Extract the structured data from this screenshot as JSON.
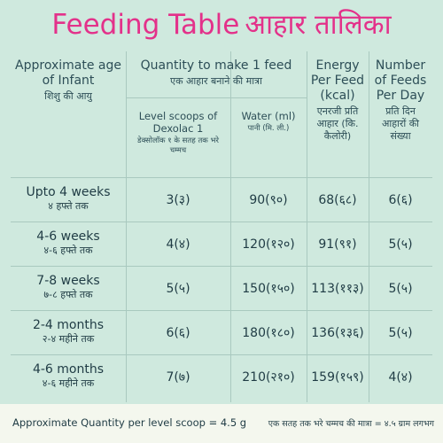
{
  "title": {
    "english": "Feeding Table",
    "hindi": "आहार तालिका"
  },
  "headers": {
    "age": {
      "english": "Approximate age of Infant",
      "hindi": "शिशु की आयु"
    },
    "quantity": {
      "english": "Quantity to make 1 feed",
      "hindi": "एक आहार बनाने की मात्रा"
    },
    "scoops": {
      "english": "Level scoops of Dexolac 1",
      "hindi": "डेक्सोलॉक १ के सतह तक भरे चम्मच"
    },
    "water": {
      "english": "Water (ml)",
      "hindi": "पानी (मि. ली.)"
    },
    "energy": {
      "english": "Energy Per Feed (kcal)",
      "hindi": "एनरजी प्रति आहार (कि. कैलोरी)"
    },
    "feeds": {
      "english": "Number of Feeds Per Day",
      "hindi": "प्रति दिन आहारों की संख्या"
    }
  },
  "rows": [
    {
      "age_en": "Upto 4 weeks",
      "age_hi": "४ हफ्ते तक",
      "scoops": "3(३)",
      "water": "90(९०)",
      "energy": "68(६८)",
      "feeds": "6(६)"
    },
    {
      "age_en": "4-6 weeks",
      "age_hi": "४-६ हफ्ते तक",
      "scoops": "4(४)",
      "water": "120(१२०)",
      "energy": "91(९१)",
      "feeds": "5(५)"
    },
    {
      "age_en": "7-8 weeks",
      "age_hi": "७-८ हफ्ते तक",
      "scoops": "5(५)",
      "water": "150(१५०)",
      "energy": "113(११३)",
      "feeds": "5(५)"
    },
    {
      "age_en": "2-4 months",
      "age_hi": "२-४ महीने तक",
      "scoops": "6(६)",
      "water": "180(१८०)",
      "energy": "136(१३६)",
      "feeds": "5(५)"
    },
    {
      "age_en": "4-6 months",
      "age_hi": "४-६ महीने तक",
      "scoops": "7(७)",
      "water": "210(२१०)",
      "energy": "159(१५९)",
      "feeds": "4(४)"
    }
  ],
  "footer": {
    "english": "Approximate Quantity per level scoop = 4.5 g",
    "hindi": "एक सतह तक भरे चम्मच की मात्रा = ४.५ ग्राम लगभग"
  }
}
